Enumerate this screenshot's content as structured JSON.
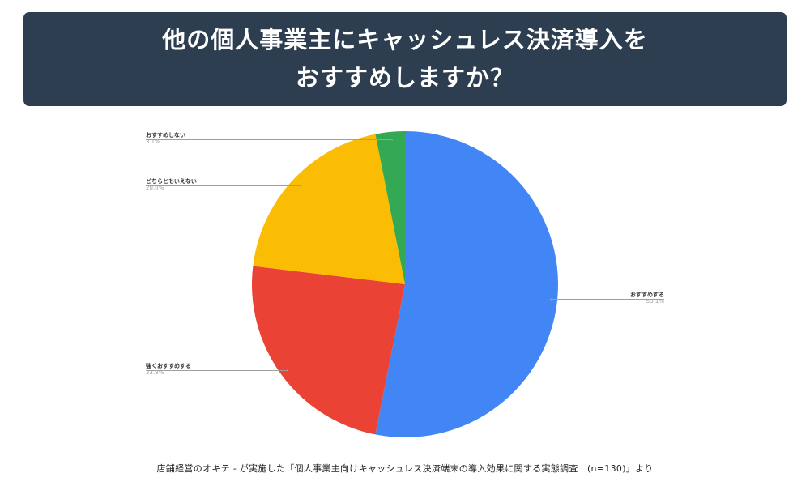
{
  "header": {
    "title_line1": "他の個人事業主にキャッシュレス決済導入を",
    "title_line2": "おすすめしますか？",
    "background_color": "#2d3e50",
    "text_color": "#ffffff"
  },
  "chart_data": {
    "type": "pie",
    "title": "他の個人事業主にキャッシュレス決済導入をおすすめしますか？",
    "categories": [
      "おすすめする",
      "強くおすすめする",
      "どちらともいえない",
      "おすすめしない"
    ],
    "values": [
      53.1,
      23.8,
      20.0,
      3.1
    ],
    "value_labels": [
      "53.1%",
      "23.8%",
      "20.0%",
      "3.1%"
    ],
    "colors": [
      "#4285f4",
      "#ea4335",
      "#fbbc04",
      "#34a853"
    ],
    "start_angle": "12 o'clock",
    "direction": "clockwise",
    "legend": "none (leader-line labels)",
    "n": 130
  },
  "labels": [
    {
      "name": "おすすめしない",
      "pct": "3.1%"
    },
    {
      "name": "どちらともいえない",
      "pct": "20.0%"
    },
    {
      "name": "強くおすすめする",
      "pct": "23.8%"
    },
    {
      "name": "おすすめする",
      "pct": "53.1%"
    }
  ],
  "footer": {
    "source": "店舗経営のオキテ - が実施した「個人事業主向けキャッシュレス決済端末の導入効果に関する実態調査　(n=130)」より"
  }
}
